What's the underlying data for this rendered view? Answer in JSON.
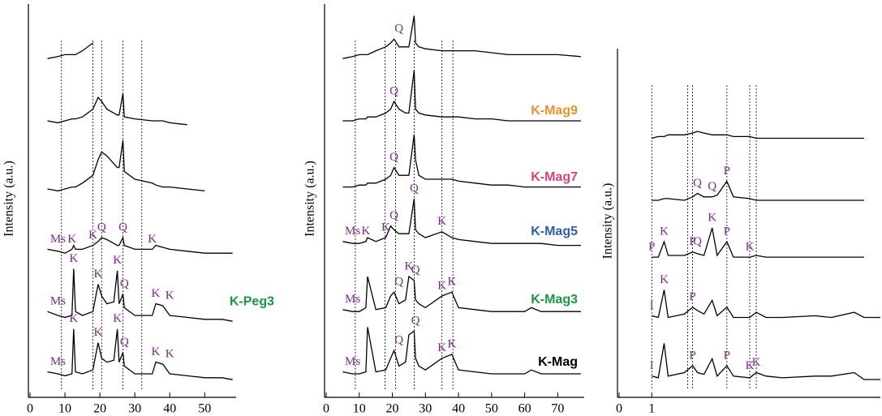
{
  "chart_data": [
    {
      "type": "line",
      "ylabel": "Intensity (a.u.)",
      "xlim": [
        0,
        59
      ],
      "xticks": [
        0,
        10,
        20,
        30,
        40,
        50
      ],
      "ylim": [
        0,
        100
      ],
      "reference_lines": [
        9,
        18,
        20.5,
        26.6,
        32
      ],
      "x": [
        5,
        8,
        10,
        12,
        12.5,
        13,
        15,
        18,
        19.5,
        20.5,
        22,
        24,
        25,
        25.5,
        26.6,
        27,
        30,
        35,
        36,
        38,
        40,
        45,
        50,
        55,
        58
      ],
      "series": [
        {
          "color": "#000000",
          "values": [
            86,
            86.5,
            87,
            87,
            87,
            87,
            88,
            90,
            null,
            null,
            null,
            null,
            null,
            null,
            null,
            null,
            null,
            null,
            null,
            null,
            null,
            null,
            null,
            null,
            null
          ]
        },
        {
          "color": "#000000",
          "values": [
            70,
            69.5,
            70,
            70.5,
            70.5,
            70.5,
            71,
            73,
            76,
            75,
            73,
            72,
            71.5,
            71.5,
            77,
            71,
            70.5,
            70,
            70,
            70,
            69.5,
            69,
            null,
            null,
            null
          ]
        },
        {
          "color": "#000000",
          "values": [
            52.5,
            52,
            52.5,
            53,
            53,
            53,
            54,
            56,
            60,
            62,
            61,
            59,
            58,
            58,
            65,
            57,
            55,
            54,
            53.5,
            53,
            53,
            52.5,
            52,
            null,
            null
          ]
        },
        {
          "color": "#000000",
          "values": [
            37,
            36.5,
            36,
            37,
            38,
            37,
            37,
            38,
            39,
            40,
            39.5,
            38.5,
            38,
            38,
            40,
            38,
            37,
            37,
            38,
            37.5,
            37,
            36.5,
            36,
            36,
            36
          ]
        },
        {
          "name": "K-Peg3",
          "label_color": "#1a9641",
          "color": "#000000",
          "values": [
            21,
            20,
            19.5,
            20,
            32,
            21,
            20,
            21,
            28,
            25,
            23,
            23.5,
            31.5,
            23,
            25.5,
            22,
            20,
            20,
            23,
            22.5,
            20,
            19.5,
            19,
            19,
            18.5
          ]
        },
        {
          "color": "#000000",
          "values": [
            5.5,
            5,
            4.5,
            5,
            16.5,
            5.5,
            5,
            6,
            13,
            9,
            8,
            8.5,
            16.5,
            8,
            10.5,
            7,
            5,
            5,
            8,
            7.5,
            5,
            4.5,
            4,
            4,
            3.5
          ]
        }
      ],
      "annotations": [
        {
          "text": "Ms",
          "x": 8,
          "series": 3
        },
        {
          "text": "K",
          "x": 12,
          "series": 3
        },
        {
          "text": "K",
          "x": 18,
          "series": 3
        },
        {
          "text": "Q",
          "x": 20.5,
          "series": 3
        },
        {
          "text": "Q",
          "x": 26.6,
          "series": 3
        },
        {
          "text": "K",
          "x": 35,
          "series": 3
        },
        {
          "text": "Ms",
          "x": 8,
          "series": 4
        },
        {
          "text": "K",
          "x": 12.5,
          "series": 4
        },
        {
          "text": "K",
          "x": 19.5,
          "series": 4
        },
        {
          "text": "K",
          "x": 25,
          "series": 4
        },
        {
          "text": "Q",
          "x": 27,
          "series": 4
        },
        {
          "text": "K",
          "x": 36,
          "series": 4
        },
        {
          "text": "K",
          "x": 40,
          "series": 4
        },
        {
          "text": "Ms",
          "x": 8,
          "series": 5
        },
        {
          "text": "K",
          "x": 12.5,
          "series": 5
        },
        {
          "text": "K",
          "x": 19.5,
          "series": 5
        },
        {
          "text": "K",
          "x": 25,
          "series": 5
        },
        {
          "text": "Q",
          "x": 27,
          "series": 5
        },
        {
          "text": "K",
          "x": 36,
          "series": 5
        },
        {
          "text": "K",
          "x": 40,
          "series": 5
        }
      ]
    },
    {
      "type": "line",
      "ylabel": "Intensity (a.u.)",
      "xlim": [
        0,
        78
      ],
      "xticks": [
        0,
        10,
        20,
        30,
        40,
        50,
        60,
        70
      ],
      "ylim": [
        0,
        100
      ],
      "reference_lines": [
        8.8,
        17.8,
        21,
        26.6,
        35,
        38.3
      ],
      "x": [
        5,
        8,
        10,
        12,
        12.5,
        15,
        18,
        19.5,
        20.5,
        22,
        24,
        25,
        26.6,
        27,
        28,
        30,
        35,
        38,
        40,
        45,
        50,
        55,
        60,
        62,
        65,
        70,
        77
      ],
      "series": [
        {
          "color": "#000000",
          "values": [
            86,
            86.5,
            87,
            87,
            87,
            88,
            89,
            90,
            91,
            89,
            89,
            89,
            97,
            90,
            89,
            88.5,
            88,
            88,
            88,
            88,
            87.5,
            87,
            87,
            87,
            87,
            87,
            86.5
          ]
        },
        {
          "name": "K-Mag9",
          "label_color": "#e8932b",
          "color": "#000000",
          "values": [
            70,
            70,
            70.5,
            70.5,
            71,
            71,
            72,
            73,
            75,
            73,
            72,
            72,
            83,
            73,
            72,
            71.5,
            71,
            71,
            71,
            70.5,
            70.5,
            70,
            70,
            70,
            70,
            70,
            70
          ]
        },
        {
          "name": "K-Mag7",
          "label_color": "#e0407a",
          "color": "#000000",
          "values": [
            53,
            53,
            53.5,
            53.5,
            54,
            54,
            55,
            56,
            58,
            56,
            56,
            56,
            66.5,
            60,
            56,
            55,
            55,
            55,
            54.5,
            54,
            53.5,
            53.5,
            53,
            53,
            53,
            53,
            53
          ]
        },
        {
          "name": "K-Mag5",
          "label_color": "#2f5fa8",
          "color": "#000000",
          "values": [
            39,
            38.5,
            38.5,
            39,
            40,
            39,
            40,
            43,
            42,
            41,
            41,
            41,
            50,
            42,
            41,
            40,
            41.5,
            40,
            39.5,
            39,
            38.5,
            38.5,
            38.5,
            38.5,
            38.5,
            38,
            38
          ]
        },
        {
          "name": "K-Mag3",
          "label_color": "#1a9641",
          "color": "#000000",
          "values": [
            21.5,
            21,
            21,
            22,
            30,
            21.5,
            22,
            25,
            26,
            23,
            24,
            30,
            29,
            24,
            23,
            22,
            25,
            26,
            22,
            21.5,
            21,
            21,
            21,
            22,
            21,
            21,
            21
          ]
        },
        {
          "name": "K-Mag",
          "label_color": "#000000",
          "color": "#000000",
          "values": [
            5.5,
            5,
            5,
            5.5,
            17,
            5.5,
            6,
            9,
            11,
            7,
            8,
            15,
            16,
            9,
            7,
            6,
            9,
            10,
            6,
            5.5,
            5,
            5,
            5,
            6,
            5,
            5,
            5
          ]
        }
      ],
      "annotations": [
        {
          "text": "Q",
          "x": 22,
          "series": 0
        },
        {
          "text": "Q",
          "x": 20.5,
          "series": 1
        },
        {
          "text": "Q",
          "x": 20.5,
          "series": 2
        },
        {
          "text": "Ms",
          "x": 8,
          "series": 3
        },
        {
          "text": "K",
          "x": 12,
          "series": 3
        },
        {
          "text": "K",
          "x": 18,
          "series": 3
        },
        {
          "text": "Q",
          "x": 20.5,
          "series": 3
        },
        {
          "text": "Q",
          "x": 26.6,
          "series": 3
        },
        {
          "text": "K",
          "x": 35,
          "series": 3
        },
        {
          "text": "Ms",
          "x": 8,
          "series": 4
        },
        {
          "text": "Q",
          "x": 22,
          "series": 4
        },
        {
          "text": "K",
          "x": 25,
          "series": 4
        },
        {
          "text": "Q",
          "x": 27,
          "series": 4
        },
        {
          "text": "K",
          "x": 35,
          "series": 4
        },
        {
          "text": "K",
          "x": 38,
          "series": 4
        },
        {
          "text": "Ms",
          "x": 8,
          "series": 5
        },
        {
          "text": "Q",
          "x": 22,
          "series": 5
        },
        {
          "text": "Q",
          "x": 27,
          "series": 5
        },
        {
          "text": "K",
          "x": 35,
          "series": 5
        },
        {
          "text": "K",
          "x": 38,
          "series": 5
        }
      ]
    },
    {
      "type": "line",
      "ylabel": "Intensity (a.u.)",
      "xlim": [
        0,
        80
      ],
      "xticks": [
        0,
        {
          "value": 10,
          "label": "1"
        }
      ],
      "ylim": [
        0,
        100
      ],
      "reference_lines": [
        10,
        21,
        22.5,
        33,
        40,
        42
      ],
      "x": [
        10,
        12,
        13.8,
        15,
        20,
        22.5,
        24,
        26,
        28.5,
        30,
        33,
        35,
        40,
        42,
        45,
        50,
        60,
        65,
        72,
        75,
        80
      ],
      "series": [
        {
          "color": "#000000",
          "values": [
            74,
            74.5,
            74.5,
            75,
            75,
            75.5,
            76,
            75.5,
            75,
            75,
            75,
            74.5,
            74.5,
            74,
            74,
            74,
            74,
            74,
            74,
            74,
            null
          ]
        },
        {
          "color": "#000000",
          "values": [
            56,
            56,
            56.5,
            56.5,
            56,
            57,
            58,
            57,
            57,
            57.5,
            61.5,
            57,
            56.5,
            56,
            56,
            56,
            56,
            56,
            56,
            56,
            null
          ]
        },
        {
          "color": "#000000",
          "values": [
            39.5,
            39.5,
            44,
            40,
            40,
            41,
            40.5,
            40,
            48,
            40,
            44,
            39.5,
            39.5,
            40,
            39.5,
            39.5,
            39.5,
            39.5,
            39.5,
            39.5,
            null
          ]
        },
        {
          "color": "#000000",
          "values": [
            22.5,
            22,
            30,
            22,
            23,
            25,
            24,
            23,
            27,
            22.5,
            25,
            22,
            22,
            23.5,
            22,
            22,
            22.5,
            22,
            23.5,
            22,
            22
          ]
        },
        {
          "color": "#000000",
          "values": [
            5,
            4.5,
            14.5,
            5,
            6,
            8,
            6,
            5.5,
            10,
            5,
            8,
            5,
            4.5,
            6,
            5,
            4.5,
            5,
            5,
            6,
            4,
            4
          ]
        }
      ],
      "annotations": [
        {
          "text": "Q",
          "x": 24,
          "series": 1
        },
        {
          "text": "Q",
          "x": 28.5,
          "series": 1
        },
        {
          "text": "P",
          "x": 33,
          "series": 1
        },
        {
          "text": "P",
          "x": 10,
          "series": 2
        },
        {
          "text": "K",
          "x": 13.8,
          "series": 2
        },
        {
          "text": "P",
          "x": 22.5,
          "series": 2
        },
        {
          "text": "Q",
          "x": 24,
          "series": 2
        },
        {
          "text": "K",
          "x": 28.5,
          "series": 2
        },
        {
          "text": "P",
          "x": 33,
          "series": 2
        },
        {
          "text": "K",
          "x": 40,
          "series": 2
        },
        {
          "text": "I",
          "x": 10,
          "series": 3
        },
        {
          "text": "K",
          "x": 13.8,
          "series": 3
        },
        {
          "text": "P",
          "x": 22.5,
          "series": 3
        },
        {
          "text": "I",
          "x": 10,
          "series": 4
        },
        {
          "text": "P",
          "x": 22.5,
          "series": 4
        },
        {
          "text": "P",
          "x": 33,
          "series": 4
        },
        {
          "text": "K",
          "x": 40,
          "series": 4
        },
        {
          "text": "K",
          "x": 42,
          "series": 4
        }
      ]
    }
  ]
}
